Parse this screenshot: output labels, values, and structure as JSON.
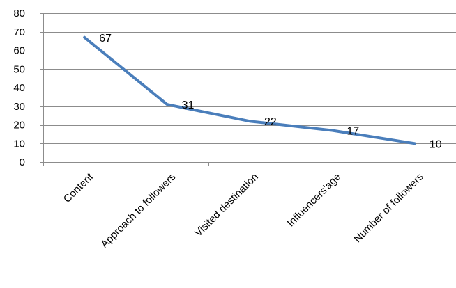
{
  "chart_data": {
    "type": "line",
    "title": "",
    "xlabel": "",
    "ylabel": "",
    "categories": [
      "Content",
      "Approach to followers",
      "Visited destination",
      "Influencers'age",
      "Number of followers"
    ],
    "series": [
      {
        "values": [
          67,
          31,
          22,
          17,
          10
        ],
        "color": "#4a7ebb"
      }
    ],
    "ylim": [
      0,
      80
    ],
    "yticks": [
      0,
      10,
      20,
      30,
      40,
      50,
      60,
      70,
      80
    ],
    "grid": true,
    "legend": "none",
    "data_labels": true
  }
}
